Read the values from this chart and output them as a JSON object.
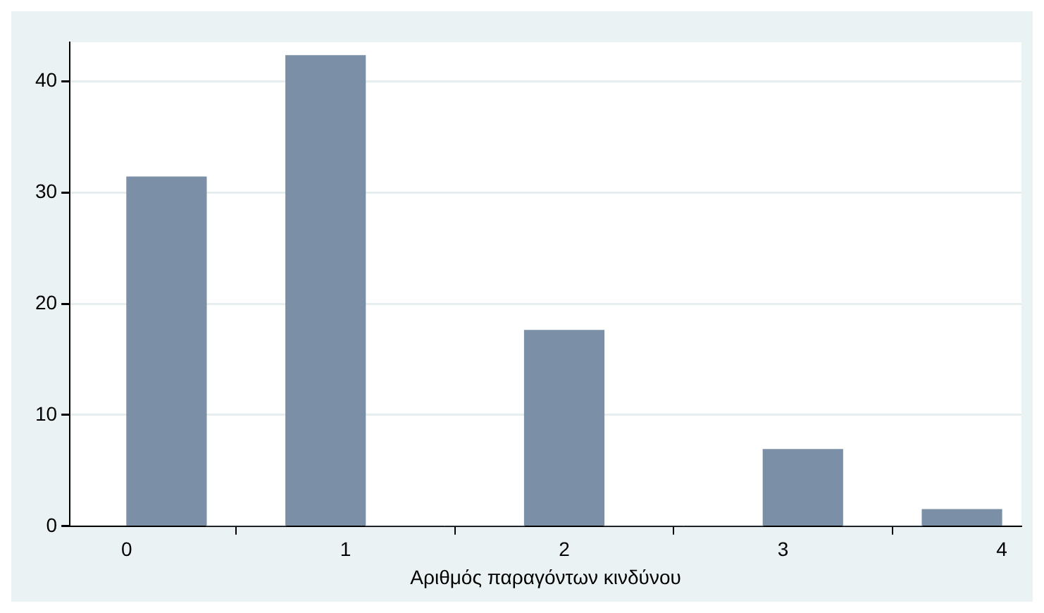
{
  "chart_data": {
    "type": "histogram",
    "xlabel": "Αριθμός παραγόντων κινδύνου",
    "bins": [
      0,
      0.364,
      0.727,
      1.091,
      1.455,
      1.818,
      2.182,
      2.545,
      2.909,
      3.273,
      3.636,
      4
    ],
    "values": [
      31.4,
      0,
      42.3,
      0,
      0,
      17.6,
      0,
      0,
      6.9,
      0,
      1.5
    ],
    "color": "#7b90a7",
    "xlim": [
      -0.26,
      4.09
    ],
    "xticks": [
      0,
      1,
      2,
      3,
      4
    ],
    "ylim": [
      0,
      43.5
    ],
    "yticks": [
      0,
      10,
      20,
      30,
      40
    ],
    "grid": "y"
  }
}
